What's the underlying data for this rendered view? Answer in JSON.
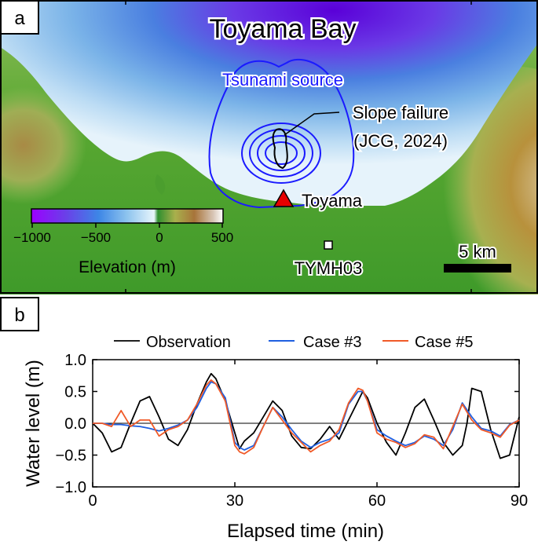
{
  "map": {
    "panel_label": "a",
    "labels": {
      "bay": "Toyama Bay",
      "source": "Tsunami source",
      "slope_line1": "Slope failure",
      "slope_line2": "(JCG, 2024)",
      "toyama": "Toyama",
      "station": "TYMH03",
      "scale": "5 km"
    },
    "colorbar": {
      "ticks": [
        "−1000",
        "−500",
        "0",
        "500"
      ],
      "title": "Elevation (m)"
    },
    "colors": {
      "source_outline": "#1a1aff",
      "slope_outline": "#000000",
      "triangle": "#e60000"
    }
  },
  "chart": {
    "panel_label": "b",
    "legend": [
      "Observation",
      "Case #3",
      "Case #5"
    ]
  },
  "chart_data": {
    "type": "line",
    "xlabel": "Elapsed time (min)",
    "ylabel": "Water level (m)",
    "xlim": [
      0,
      90
    ],
    "ylim": [
      -1.0,
      1.0
    ],
    "xticks": [
      "0",
      "30",
      "60",
      "90"
    ],
    "yticks": [
      "1.0",
      "0.5",
      "0.0",
      "−0.5",
      "−1.0"
    ],
    "grid": false,
    "legend_position": "top",
    "series": [
      {
        "name": "Observation",
        "color": "#000000",
        "x": [
          0,
          2,
          4,
          6,
          8,
          10,
          12,
          14,
          16,
          18,
          20,
          22,
          24,
          25,
          26,
          28,
          30,
          31,
          32,
          34,
          36,
          38,
          40,
          42,
          44,
          46,
          48,
          50,
          52,
          54,
          56,
          57,
          58,
          60,
          62,
          64,
          66,
          68,
          70,
          72,
          74,
          76,
          78,
          79,
          80,
          82,
          84,
          86,
          88,
          90
        ],
        "y": [
          0.0,
          -0.15,
          -0.45,
          -0.38,
          0.0,
          0.35,
          0.42,
          0.1,
          -0.25,
          -0.35,
          -0.1,
          0.3,
          0.65,
          0.78,
          0.7,
          0.35,
          -0.15,
          -0.4,
          -0.28,
          -0.15,
          0.1,
          0.35,
          0.2,
          -0.2,
          -0.38,
          -0.4,
          -0.25,
          -0.05,
          -0.25,
          0.05,
          0.35,
          0.5,
          0.4,
          0.0,
          -0.3,
          -0.5,
          -0.15,
          0.25,
          0.38,
          0.05,
          -0.3,
          -0.5,
          -0.35,
          0.0,
          0.55,
          0.5,
          -0.1,
          -0.55,
          -0.5,
          0.1
        ]
      },
      {
        "name": "Case #3",
        "color": "#1f5fe0",
        "x": [
          0,
          2,
          4,
          6,
          8,
          10,
          12,
          14,
          16,
          18,
          20,
          22,
          24,
          25,
          26,
          28,
          29,
          30,
          31,
          32,
          34,
          36,
          38,
          40,
          42,
          44,
          46,
          48,
          50,
          52,
          54,
          56,
          57,
          58,
          60,
          62,
          64,
          66,
          68,
          70,
          72,
          74,
          76,
          78,
          80,
          82,
          84,
          86,
          88,
          90
        ],
        "y": [
          0.0,
          0.0,
          -0.02,
          -0.02,
          -0.04,
          -0.05,
          -0.08,
          -0.12,
          -0.08,
          -0.03,
          0.05,
          0.25,
          0.55,
          0.65,
          0.62,
          0.4,
          0.05,
          -0.3,
          -0.38,
          -0.42,
          -0.35,
          -0.05,
          0.25,
          0.1,
          -0.1,
          -0.28,
          -0.38,
          -0.3,
          -0.25,
          -0.15,
          0.3,
          0.5,
          0.5,
          0.35,
          -0.1,
          -0.2,
          -0.28,
          -0.35,
          -0.3,
          -0.2,
          -0.25,
          -0.35,
          -0.1,
          0.32,
          0.1,
          -0.08,
          -0.12,
          -0.2,
          -0.02,
          0.05
        ]
      },
      {
        "name": "Case #5",
        "color": "#f05a28",
        "x": [
          0,
          2,
          4,
          6,
          8,
          10,
          12,
          14,
          16,
          18,
          20,
          22,
          24,
          25,
          26,
          28,
          29,
          30,
          31,
          32,
          34,
          36,
          38,
          40,
          42,
          44,
          46,
          48,
          50,
          52,
          54,
          56,
          57,
          58,
          60,
          62,
          64,
          66,
          68,
          70,
          72,
          74,
          76,
          78,
          80,
          82,
          84,
          86,
          88,
          90
        ],
        "y": [
          0.0,
          0.0,
          -0.05,
          0.2,
          -0.05,
          0.05,
          0.05,
          -0.2,
          -0.1,
          -0.05,
          0.05,
          0.3,
          0.6,
          0.68,
          0.62,
          0.35,
          0.0,
          -0.35,
          -0.45,
          -0.48,
          -0.38,
          -0.05,
          0.25,
          0.05,
          -0.15,
          -0.3,
          -0.45,
          -0.35,
          -0.28,
          -0.1,
          0.32,
          0.55,
          0.52,
          0.35,
          -0.15,
          -0.25,
          -0.3,
          -0.38,
          -0.32,
          -0.18,
          -0.22,
          -0.4,
          -0.05,
          0.3,
          0.05,
          -0.1,
          -0.15,
          -0.22,
          -0.03,
          0.05
        ]
      }
    ]
  }
}
